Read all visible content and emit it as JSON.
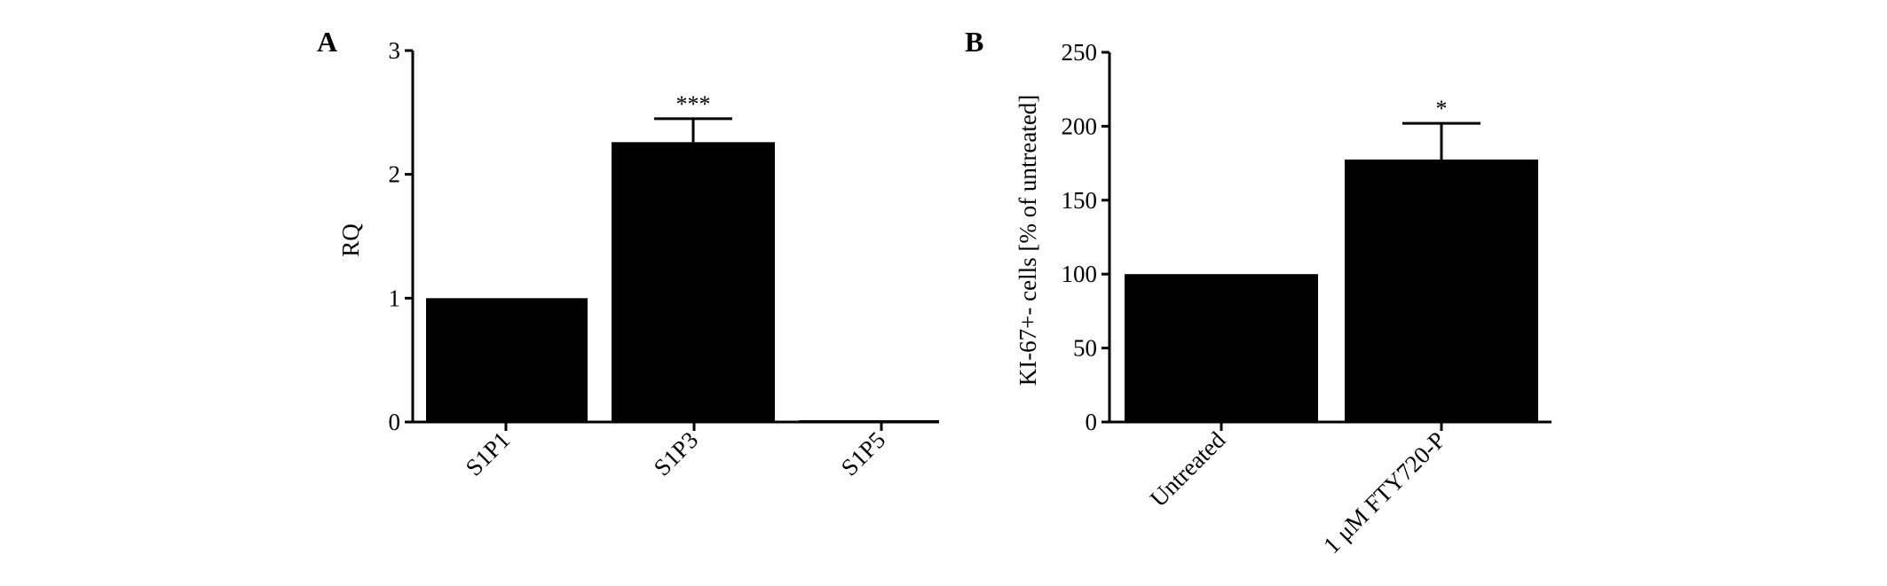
{
  "chart_data": [
    {
      "panel_label": "A",
      "type": "bar",
      "categories": [
        "S1P1",
        "S1P3",
        "S1P5"
      ],
      "values": [
        1.0,
        2.26,
        0.0
      ],
      "error_upper": [
        null,
        2.45,
        null
      ],
      "annotations": [
        "",
        "***",
        ""
      ],
      "xlabel": "",
      "ylabel": "RQ",
      "ylim": [
        0,
        3
      ],
      "yticks": [
        "0",
        "1",
        "2",
        "3"
      ],
      "grid": false,
      "bar_color": "#000000"
    },
    {
      "panel_label": "B",
      "type": "bar",
      "categories": [
        "Untreated",
        "1 μM FTY720-P"
      ],
      "values": [
        100,
        177.5
      ],
      "error_upper": [
        null,
        202
      ],
      "annotations": [
        "",
        "*"
      ],
      "xlabel": "",
      "ylabel": "KI-67+- cells [% of untreated]",
      "ylim": [
        0,
        250
      ],
      "yticks": [
        "0",
        "50",
        "100",
        "150",
        "200",
        "250"
      ],
      "grid": false,
      "bar_color": "#000000"
    }
  ]
}
